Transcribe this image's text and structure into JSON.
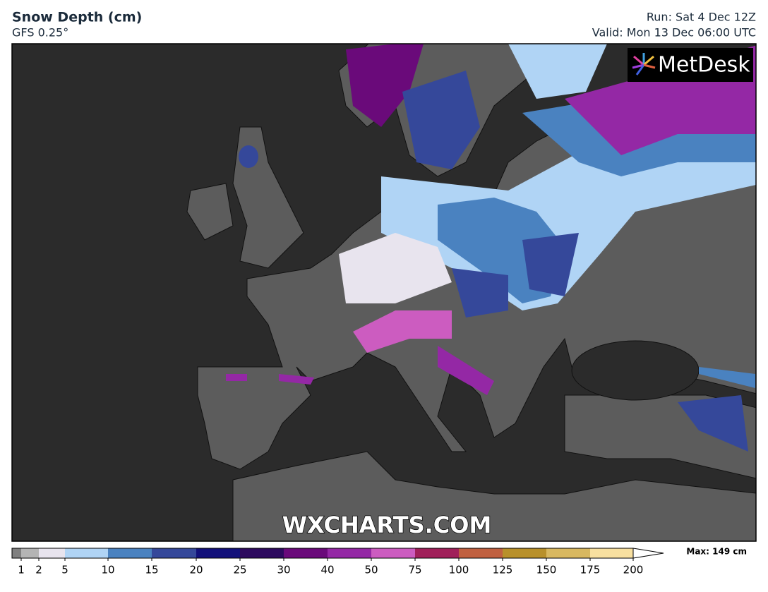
{
  "header": {
    "title": "Snow Depth (cm)",
    "model": "GFS 0.25°",
    "run": "Run: Sat 4 Dec 12Z",
    "valid": "Valid: Mon 13 Dec 06:00 UTC"
  },
  "map": {
    "logo": "MetDesk",
    "watermark": "WXCHARTS.COM"
  },
  "colorbar": {
    "ticks": [
      1,
      2,
      5,
      10,
      15,
      20,
      25,
      30,
      40,
      50,
      75,
      100,
      125,
      150,
      175,
      200
    ],
    "colors": [
      "#808080",
      "#b4b4b4",
      "#e8e4ee",
      "#b0d4f5",
      "#4a82c0",
      "#35489a",
      "#12107a",
      "#2d0a5e",
      "#6a0a7a",
      "#9428a5",
      "#cc5cc0",
      "#a0205a",
      "#c06040",
      "#b8902a",
      "#d8b860",
      "#f8e0a0"
    ],
    "max_label": "Max: 149 cm"
  }
}
